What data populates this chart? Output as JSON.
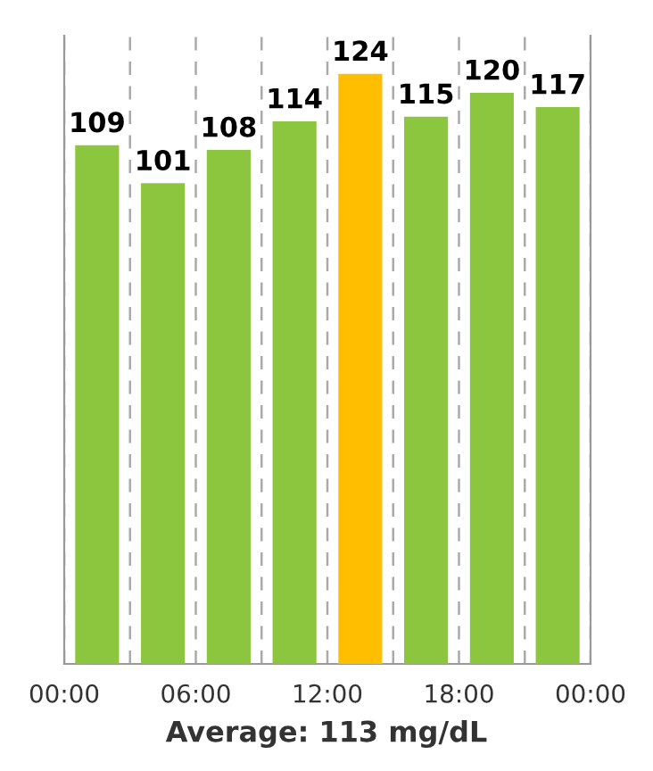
{
  "chart_data": {
    "type": "bar",
    "x": [
      1.5,
      4.5,
      7.5,
      10.5,
      13.5,
      16.5,
      19.5,
      22.5
    ],
    "values": [
      109,
      101,
      108,
      114,
      124,
      115,
      120,
      117
    ],
    "colors": [
      "#8cc63f",
      "#8cc63f",
      "#8cc63f",
      "#8cc63f",
      "#ffbf00",
      "#8cc63f",
      "#8cc63f",
      "#8cc63f"
    ],
    "data_labels": true,
    "xlim": [
      0,
      24
    ],
    "xticks": [
      {
        "value": 0,
        "label": "00:00"
      },
      {
        "value": 3,
        "label": null
      },
      {
        "value": 6,
        "label": "06:00"
      },
      {
        "value": 9,
        "label": null
      },
      {
        "value": 12,
        "label": "12:00"
      },
      {
        "value": 15,
        "label": null
      },
      {
        "value": 18,
        "label": "18:00"
      },
      {
        "value": 21,
        "label": null
      },
      {
        "value": 24,
        "label": "00:00"
      }
    ],
    "ylim": [
      0,
      132
    ],
    "tick_labels": "x",
    "grid": "x",
    "annotations": [
      "Average: 113 mg/dL"
    ]
  }
}
